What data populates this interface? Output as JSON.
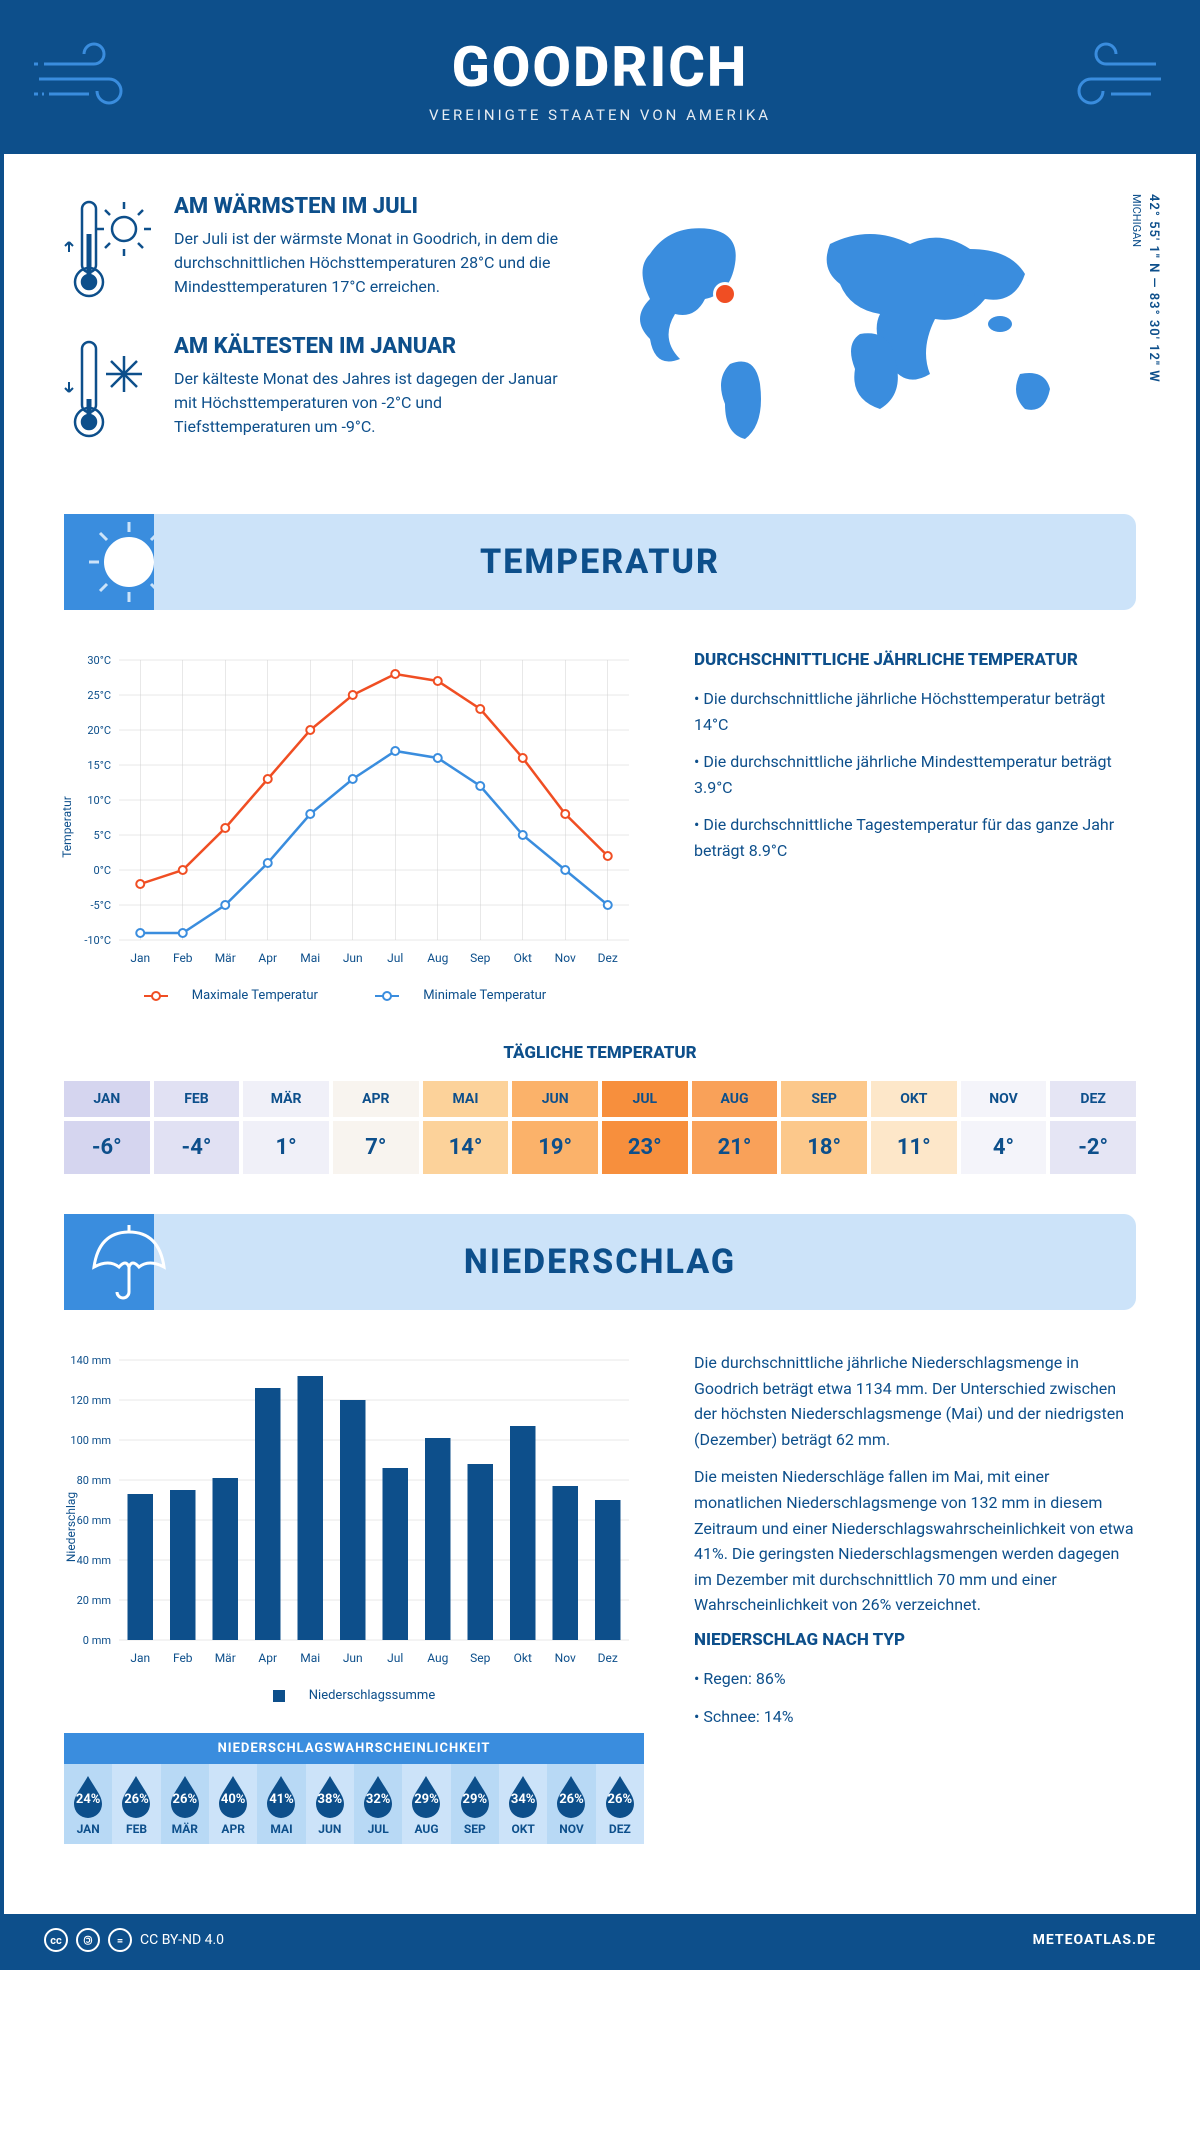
{
  "colors": {
    "primary": "#0d4f8b",
    "accent": "#3a8dde",
    "banner_bg": "#cce3f9",
    "line_high": "#f04e23",
    "line_low": "#3a8dde",
    "bar": "#0d4f8b",
    "grid": "#d0d0d0"
  },
  "header": {
    "title": "GOODRICH",
    "subtitle": "VEREINIGTE STAATEN VON AMERIKA"
  },
  "location": {
    "coords": "42° 55' 1\" N — 83° 30' 12\" W",
    "region": "MICHIGAN"
  },
  "warmest": {
    "title": "AM WÄRMSTEN IM JULI",
    "text": "Der Juli ist der wärmste Monat in Goodrich, in dem die durchschnittlichen Höchsttemperaturen 28°C und die Mindesttemperaturen 17°C erreichen."
  },
  "coldest": {
    "title": "AM KÄLTESTEN IM JANUAR",
    "text": "Der kälteste Monat des Jahres ist dagegen der Januar mit Höchsttemperaturen von -2°C und Tiefsttemperaturen um -9°C."
  },
  "temp_section": {
    "banner": "TEMPERATUR",
    "avg_title": "DURCHSCHNITTLICHE JÄHRLICHE TEMPERATUR",
    "avg_points": [
      "Die durchschnittliche jährliche Höchsttemperatur beträgt 14°C",
      "Die durchschnittliche jährliche Mindesttemperatur beträgt 3.9°C",
      "Die durchschnittliche Tagestemperatur für das ganze Jahr beträgt 8.9°C"
    ],
    "chart": {
      "type": "line",
      "ylabel": "Temperatur",
      "ylim": [
        -10,
        30
      ],
      "ytick_step": 5,
      "months": [
        "Jan",
        "Feb",
        "Mär",
        "Apr",
        "Mai",
        "Jun",
        "Jul",
        "Aug",
        "Sep",
        "Okt",
        "Nov",
        "Dez"
      ],
      "series_high": {
        "label": "Maximale Temperatur",
        "color": "#f04e23",
        "values": [
          -2,
          0,
          6,
          13,
          20,
          25,
          28,
          27,
          23,
          16,
          8,
          2
        ]
      },
      "series_low": {
        "label": "Minimale Temperatur",
        "color": "#3a8dde",
        "values": [
          -9,
          -9,
          -5,
          1,
          8,
          13,
          17,
          16,
          12,
          5,
          0,
          -5
        ]
      }
    },
    "daily": {
      "title": "TÄGLICHE TEMPERATUR",
      "months": [
        "JAN",
        "FEB",
        "MÄR",
        "APR",
        "MAI",
        "JUN",
        "JUL",
        "AUG",
        "SEP",
        "OKT",
        "NOV",
        "DEZ"
      ],
      "values": [
        "-6°",
        "-4°",
        "1°",
        "7°",
        "14°",
        "19°",
        "23°",
        "21°",
        "18°",
        "11°",
        "4°",
        "-2°"
      ],
      "cell_colors": [
        "#d5d5ef",
        "#e1e1f3",
        "#f0f0f8",
        "#f8f4ef",
        "#fcd29a",
        "#fbb26a",
        "#f78f3d",
        "#f9a159",
        "#fcc88b",
        "#fde7c9",
        "#f4f4fa",
        "#e5e5f4"
      ]
    }
  },
  "precip_section": {
    "banner": "NIEDERSCHLAG",
    "chart": {
      "type": "bar",
      "ylabel": "Niederschlag",
      "ylim": [
        0,
        140
      ],
      "ytick_step": 20,
      "unit": "mm",
      "months": [
        "Jan",
        "Feb",
        "Mär",
        "Apr",
        "Mai",
        "Jun",
        "Jul",
        "Aug",
        "Sep",
        "Okt",
        "Nov",
        "Dez"
      ],
      "values": [
        73,
        75,
        81,
        126,
        132,
        120,
        86,
        101,
        88,
        107,
        77,
        70
      ],
      "legend": "Niederschlagssumme",
      "bar_width": 0.6
    },
    "prob": {
      "title": "NIEDERSCHLAGSWAHRSCHEINLICHKEIT",
      "months": [
        "JAN",
        "FEB",
        "MÄR",
        "APR",
        "MAI",
        "JUN",
        "JUL",
        "AUG",
        "SEP",
        "OKT",
        "NOV",
        "DEZ"
      ],
      "values": [
        "24%",
        "26%",
        "26%",
        "40%",
        "41%",
        "38%",
        "32%",
        "29%",
        "29%",
        "34%",
        "26%",
        "26%"
      ]
    },
    "text_p1": "Die durchschnittliche jährliche Niederschlagsmenge in Goodrich beträgt etwa 1134 mm. Der Unterschied zwischen der höchsten Niederschlagsmenge (Mai) und der niedrigsten (Dezember) beträgt 62 mm.",
    "text_p2": "Die meisten Niederschläge fallen im Mai, mit einer monatlichen Niederschlagsmenge von 132 mm in diesem Zeitraum und einer Niederschlagswahrscheinlichkeit von etwa 41%. Die geringsten Niederschlagsmengen werden dagegen im Dezember mit durchschnittlich 70 mm und einer Wahrscheinlichkeit von 26% verzeichnet.",
    "bytype_title": "NIEDERSCHLAG NACH TYP",
    "bytype_points": [
      "Regen: 86%",
      "Schnee: 14%"
    ]
  },
  "footer": {
    "license": "CC BY-ND 4.0",
    "site": "METEOATLAS.DE"
  }
}
